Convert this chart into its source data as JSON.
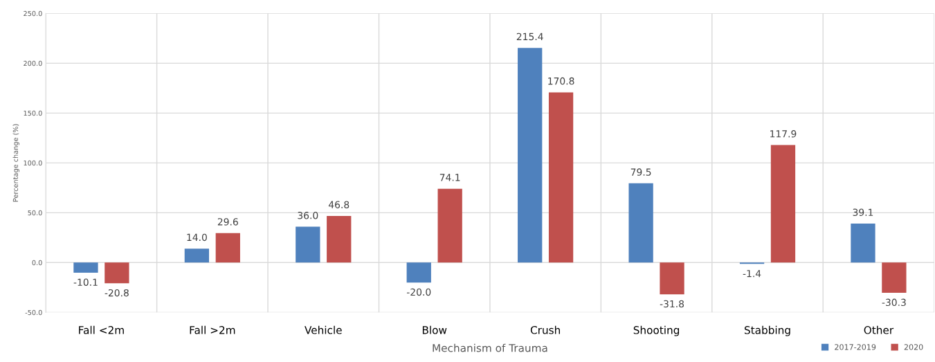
{
  "chart_data": {
    "type": "bar",
    "xlabel": "Mechanism of Trauma",
    "ylabel": "Percentage change (%)",
    "categories": [
      "Fall <2m",
      "Fall >2m",
      "Vehicle",
      "Blow",
      "Crush",
      "Shooting",
      "Stabbing",
      "Other"
    ],
    "series": [
      {
        "name": "2017-2019",
        "color": "#4f81bd",
        "values": [
          -10.1,
          14.0,
          36.0,
          -20.0,
          215.4,
          79.5,
          -1.4,
          39.1
        ],
        "value_labels": [
          "-10.1",
          "14.0",
          "36.0",
          "-20.0",
          "215.4",
          "79.5",
          "-1.4",
          "39.1"
        ]
      },
      {
        "name": "2020",
        "color": "#c0504d",
        "values": [
          -20.8,
          29.6,
          46.8,
          74.1,
          170.8,
          -31.8,
          117.9,
          -30.3
        ],
        "value_labels": [
          "-20.8",
          "29.6",
          "46.8",
          "74.1",
          "170.8",
          "-31.8",
          "117.9",
          "-30.3"
        ]
      }
    ],
    "ylim": [
      -50,
      250
    ],
    "yticks": [
      {
        "value": -50,
        "label": "-50.0"
      },
      {
        "value": 0,
        "label": "0.0"
      },
      {
        "value": 50,
        "label": "50.0"
      },
      {
        "value": 100,
        "label": "100.0"
      },
      {
        "value": 150,
        "label": "150.0"
      },
      {
        "value": 200,
        "label": "200.0"
      },
      {
        "value": 250,
        "label": "250.0"
      }
    ],
    "grid": true,
    "legend": "bottom right"
  }
}
